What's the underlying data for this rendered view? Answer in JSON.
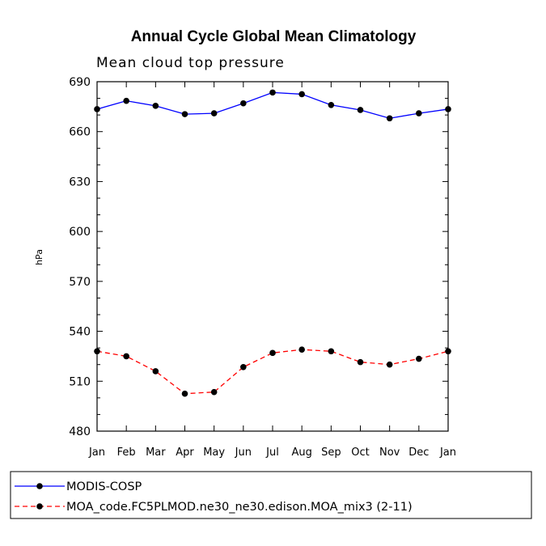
{
  "chart_data": {
    "type": "line",
    "title": "Annual Cycle Global Mean Climatology",
    "subtitle": "Mean cloud top pressure",
    "xlabel": "",
    "ylabel": "hPa",
    "ylim": [
      480,
      690
    ],
    "yticks": [
      480,
      510,
      540,
      570,
      600,
      630,
      660,
      690
    ],
    "categories": [
      "Jan",
      "Feb",
      "Mar",
      "Apr",
      "May",
      "Jun",
      "Jul",
      "Aug",
      "Sep",
      "Oct",
      "Nov",
      "Dec",
      "Jan"
    ],
    "series": [
      {
        "name": "MODIS-COSP",
        "color": "#0000ff",
        "dash": "solid",
        "values": [
          673.5,
          678.5,
          675.5,
          670.5,
          671,
          677,
          683.5,
          682.5,
          676,
          673,
          668,
          671,
          673.5
        ]
      },
      {
        "name": "MOA_code.FC5PLMOD.ne30_ne30.edison.MOA_mix3 (2-11)",
        "color": "#ff0000",
        "dash": "dashed",
        "values": [
          528,
          525,
          516,
          502.5,
          503.5,
          518.5,
          527,
          529,
          528,
          521.5,
          520,
          523.5,
          528
        ]
      }
    ]
  }
}
